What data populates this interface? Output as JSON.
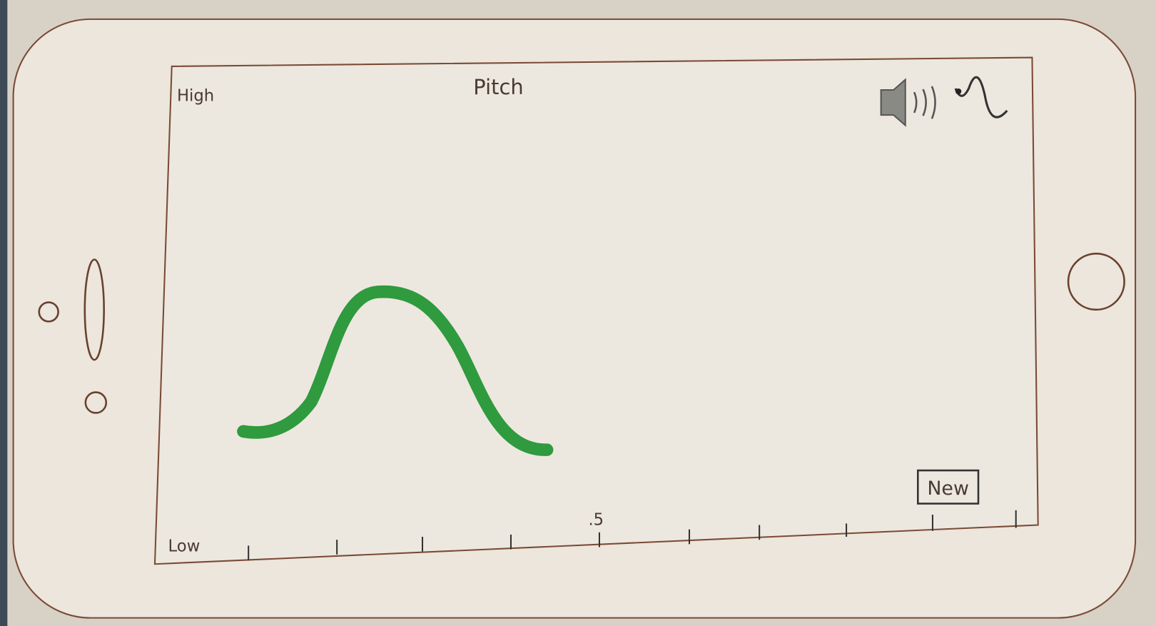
{
  "screen": {
    "title": "Pitch",
    "y_axis": {
      "high": "High",
      "low": "Low"
    },
    "x_axis": {
      "tick_label": ".5"
    },
    "button": "New"
  }
}
